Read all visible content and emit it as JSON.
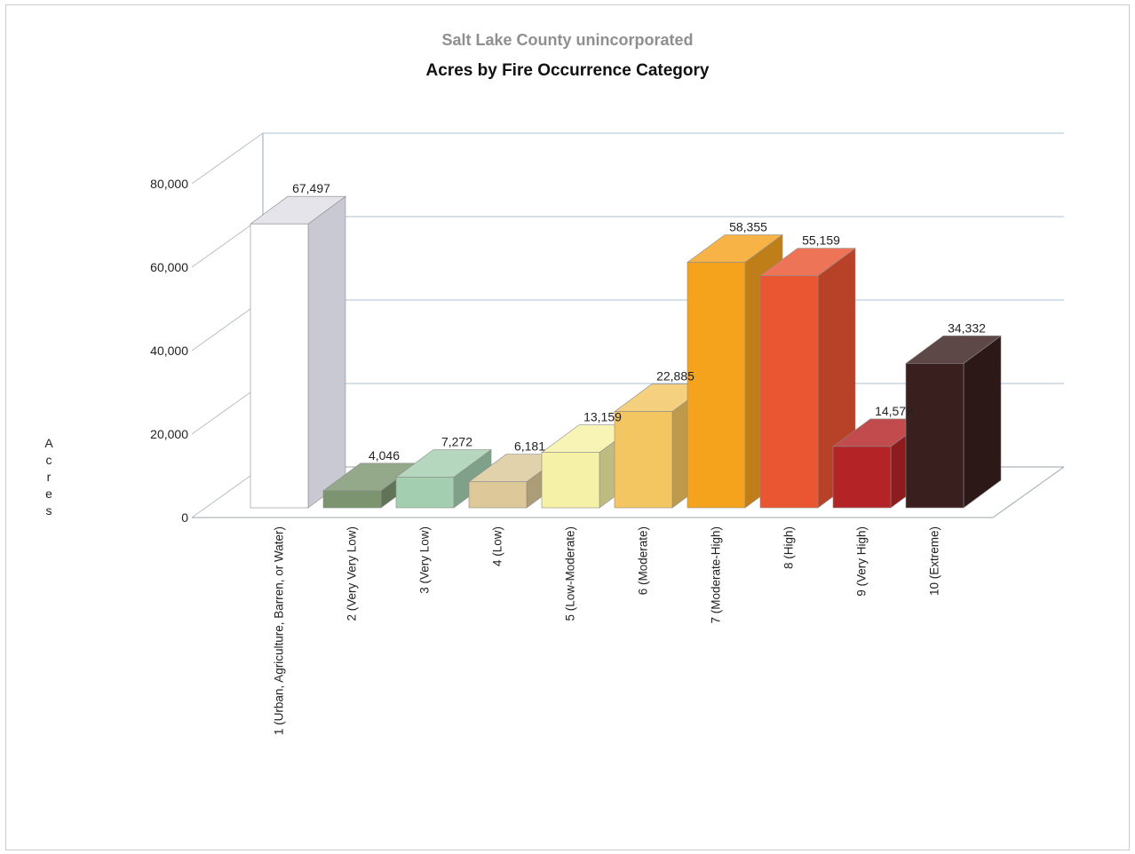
{
  "chart_data": {
    "type": "bar",
    "subtitle": "Salt Lake County unincorporated",
    "title": "Acres by Fire Occurrence Category",
    "ylabel": "Acres",
    "xlabel": "",
    "ylim": [
      0,
      80000
    ],
    "yticks": [
      "0",
      "20,000",
      "40,000",
      "60,000",
      "80,000"
    ],
    "grid": true,
    "legend": "none",
    "categories": [
      "1 (Urban, Agriculture, Barren, or Water)",
      "2 (Very Very Low)",
      "3 (Very Low)",
      "4 (Low)",
      "5 (Low-Moderate)",
      "6 (Moderate)",
      "7 (Moderate-High)",
      "8 (High)",
      "9 (Very High)",
      "10 (Extreme)"
    ],
    "values": [
      67497,
      4046,
      7272,
      6181,
      13159,
      22885,
      58355,
      55159,
      14579,
      34332
    ],
    "value_labels": [
      "67,497",
      "4,046",
      "7,272",
      "6,181",
      "13,159",
      "22,885",
      "58,355",
      "55,159",
      "14,579",
      "34,332"
    ],
    "colors": [
      "#ffffff",
      "#7c9570",
      "#a3ceb0",
      "#dcc898",
      "#f5f1a6",
      "#f3c662",
      "#f5a21d",
      "#ea5532",
      "#b42426",
      "#3a1f1f"
    ]
  }
}
